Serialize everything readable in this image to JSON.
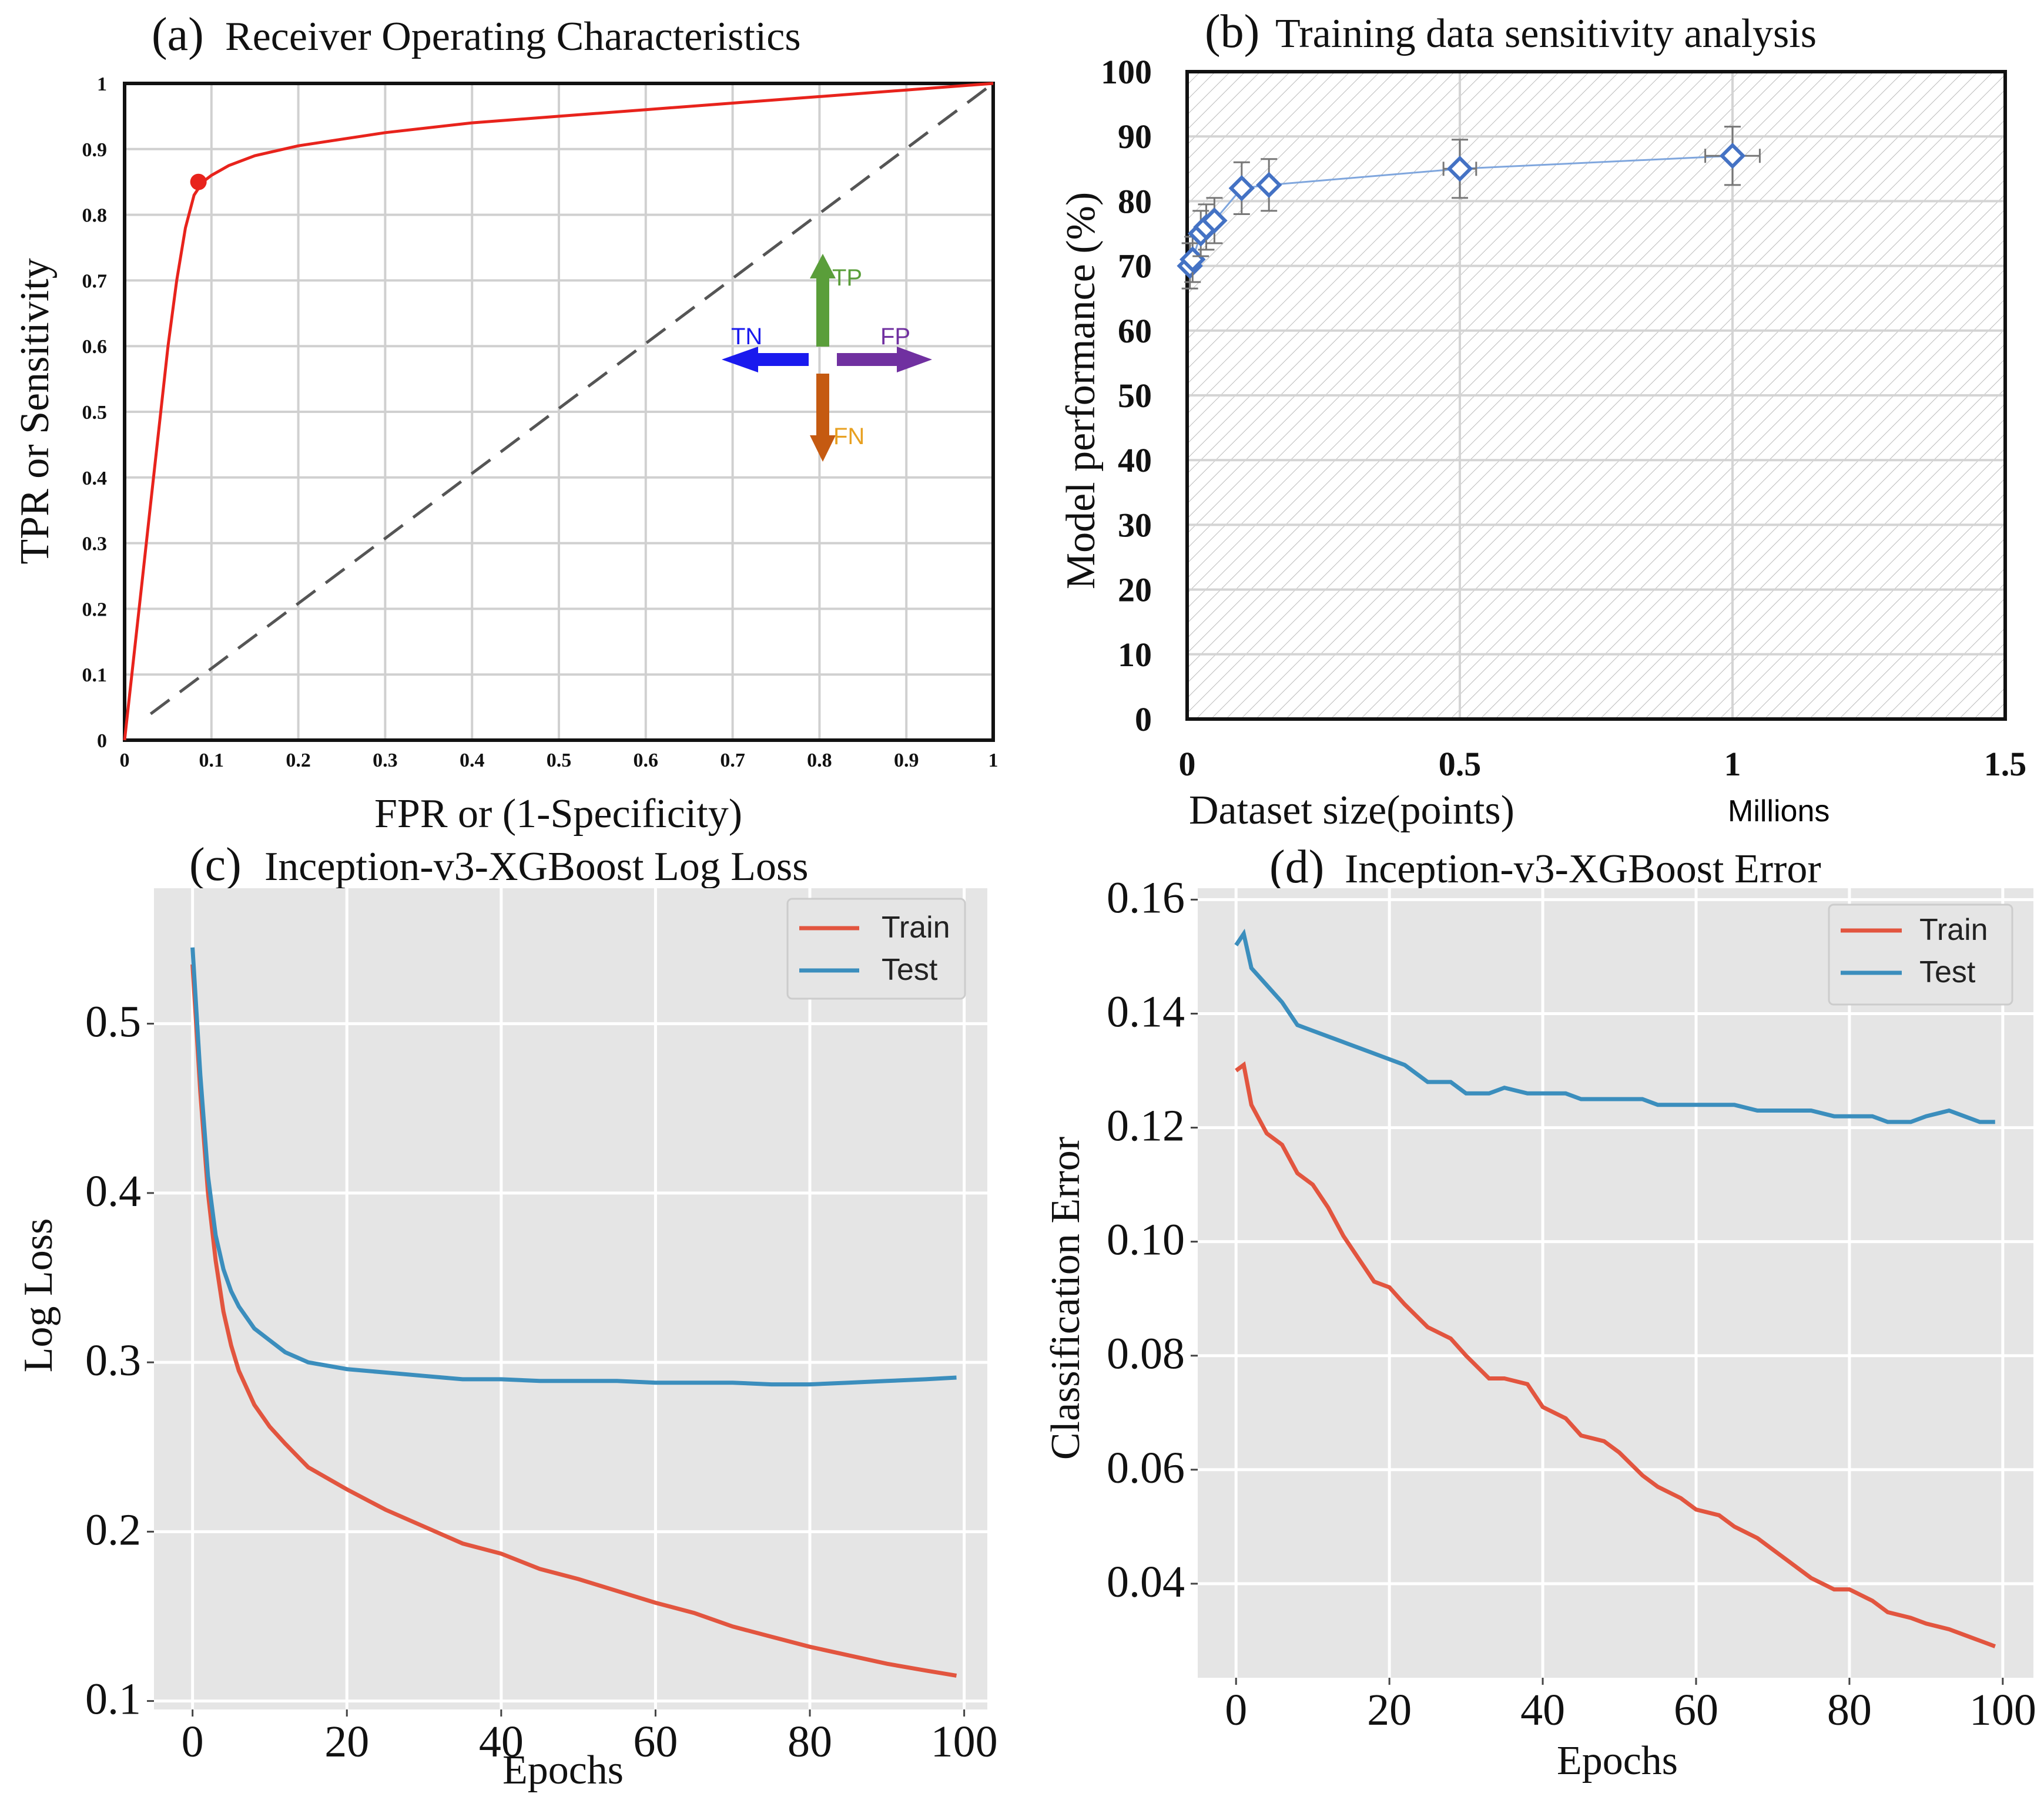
{
  "chart_data": [
    {
      "type": "line",
      "panel_tag": "(a)",
      "title": "Receiver Operating Characteristics",
      "xlabel": "FPR  or  (1-Specificity)",
      "ylabel": "TPR or Sensitivity",
      "xlim": [
        0,
        1
      ],
      "ylim": [
        0,
        1
      ],
      "grid": true,
      "xticks": [
        "0",
        "0.1",
        "0.2",
        "0.3",
        "0.4",
        "0.5",
        "0.6",
        "0.7",
        "0.8",
        "0.9",
        "1"
      ],
      "yticks": [
        "0",
        "0.1",
        "0.2",
        "0.3",
        "0.4",
        "0.5",
        "0.6",
        "0.7",
        "0.8",
        "0.9",
        "1"
      ],
      "roc_curve": {
        "color": "#e8231c",
        "x": [
          0,
          0.01,
          0.02,
          0.03,
          0.04,
          0.05,
          0.06,
          0.07,
          0.08,
          0.09,
          0.1,
          0.12,
          0.15,
          0.2,
          0.3,
          0.4,
          0.5,
          0.6,
          0.7,
          0.8,
          0.9,
          1.0
        ],
        "y": [
          0,
          0.12,
          0.24,
          0.36,
          0.48,
          0.6,
          0.7,
          0.78,
          0.83,
          0.85,
          0.86,
          0.875,
          0.89,
          0.905,
          0.925,
          0.94,
          0.95,
          0.96,
          0.97,
          0.98,
          0.99,
          1.0
        ]
      },
      "operating_point": {
        "x": 0.085,
        "y": 0.85,
        "color": "#e8231c"
      },
      "diagonal": {
        "x": [
          0.03,
          1.0
        ],
        "y": [
          0.04,
          1.0
        ],
        "color": "#555555",
        "style": "dashed"
      },
      "annotations": [
        {
          "label": "TP",
          "direction": "up",
          "color": "#5a9e3a"
        },
        {
          "label": "TN",
          "direction": "left",
          "color": "#1a1aee"
        },
        {
          "label": "FP",
          "direction": "right",
          "color": "#7030a0"
        },
        {
          "label": "FN",
          "direction": "down",
          "color": "#c55a11",
          "label_color": "#e8a020"
        }
      ]
    },
    {
      "type": "scatter",
      "panel_tag": "(b)",
      "title": "Training data sensitivity analysis",
      "xlabel": "Dataset size(points)",
      "xlabel_unit": "Millions",
      "ylabel": "Model performance (%)",
      "xlim": [
        0,
        1.5
      ],
      "ylim": [
        0,
        100
      ],
      "grid": true,
      "xticks": [
        "0",
        "0.5",
        "1",
        "1.5"
      ],
      "yticks": [
        "0",
        "10",
        "20",
        "30",
        "40",
        "50",
        "60",
        "70",
        "80",
        "90",
        "100"
      ],
      "marker_color": "#4472c4",
      "points": [
        {
          "x": 0.005,
          "y": 70,
          "yerr": 3.5,
          "xerr": 0.0
        },
        {
          "x": 0.01,
          "y": 71,
          "yerr": 3.5,
          "xerr": 0.0
        },
        {
          "x": 0.025,
          "y": 75,
          "yerr": 3.5,
          "xerr": 0.0
        },
        {
          "x": 0.035,
          "y": 76,
          "yerr": 3.5,
          "xerr": 0.0
        },
        {
          "x": 0.05,
          "y": 77,
          "yerr": 3.5,
          "xerr": 0.0
        },
        {
          "x": 0.1,
          "y": 82,
          "yerr": 4.0,
          "xerr": 0.0
        },
        {
          "x": 0.15,
          "y": 82.5,
          "yerr": 4.0,
          "xerr": 0.0
        },
        {
          "x": 0.5,
          "y": 85,
          "yerr": 4.5,
          "xerr": 0.03
        },
        {
          "x": 1.0,
          "y": 87,
          "yerr": 4.5,
          "xerr": 0.05
        }
      ]
    },
    {
      "type": "line",
      "panel_tag": "(c)",
      "title": "Inception-v3-XGBoost Log Loss",
      "xlabel": "Epochs",
      "ylabel": "Log Loss",
      "xlim": [
        -5,
        103
      ],
      "ylim": [
        0.095,
        0.58
      ],
      "grid": true,
      "xticks": [
        "0",
        "20",
        "40",
        "60",
        "80",
        "100"
      ],
      "yticks": [
        "0.1",
        "0.2",
        "0.3",
        "0.4",
        "0.5"
      ],
      "legend": "top-right",
      "series": [
        {
          "name": "Train",
          "color": "#e2553f",
          "x": [
            0,
            1,
            2,
            3,
            4,
            5,
            6,
            8,
            10,
            12,
            15,
            20,
            25,
            30,
            35,
            40,
            45,
            50,
            55,
            60,
            65,
            70,
            75,
            80,
            85,
            90,
            95,
            99
          ],
          "values": [
            0.535,
            0.46,
            0.4,
            0.36,
            0.33,
            0.31,
            0.295,
            0.275,
            0.262,
            0.252,
            0.238,
            0.225,
            0.213,
            0.203,
            0.193,
            0.187,
            0.178,
            0.172,
            0.165,
            0.158,
            0.152,
            0.144,
            0.138,
            0.132,
            0.127,
            0.122,
            0.118,
            0.115
          ]
        },
        {
          "name": "Test",
          "color": "#3b8ebd",
          "x": [
            0,
            1,
            2,
            3,
            4,
            5,
            6,
            8,
            10,
            12,
            15,
            20,
            25,
            30,
            35,
            40,
            45,
            50,
            55,
            60,
            65,
            70,
            75,
            80,
            85,
            90,
            95,
            99
          ],
          "values": [
            0.545,
            0.47,
            0.41,
            0.375,
            0.355,
            0.342,
            0.333,
            0.32,
            0.313,
            0.306,
            0.3,
            0.296,
            0.294,
            0.292,
            0.29,
            0.29,
            0.289,
            0.289,
            0.289,
            0.288,
            0.288,
            0.288,
            0.287,
            0.287,
            0.288,
            0.289,
            0.29,
            0.291
          ]
        }
      ]
    },
    {
      "type": "line",
      "panel_tag": "(d)",
      "title": "Inception-v3-XGBoost Error",
      "xlabel": "Epochs",
      "ylabel": "Classification Error",
      "xlim": [
        -5,
        104
      ],
      "ylim": [
        0.0235,
        0.162
      ],
      "grid": true,
      "xticks": [
        "0",
        "20",
        "40",
        "60",
        "80",
        "100"
      ],
      "yticks": [
        "0.04",
        "0.06",
        "0.08",
        "0.10",
        "0.12",
        "0.14",
        "0.16"
      ],
      "legend": "top-right",
      "series": [
        {
          "name": "Train",
          "color": "#e2553f",
          "x": [
            0,
            1,
            2,
            4,
            6,
            8,
            10,
            12,
            14,
            16,
            18,
            20,
            22,
            25,
            28,
            30,
            33,
            35,
            38,
            40,
            43,
            45,
            48,
            50,
            53,
            55,
            58,
            60,
            63,
            65,
            68,
            70,
            73,
            75,
            78,
            80,
            83,
            85,
            88,
            90,
            93,
            95,
            97,
            99
          ],
          "values": [
            0.13,
            0.131,
            0.124,
            0.119,
            0.117,
            0.112,
            0.11,
            0.106,
            0.101,
            0.097,
            0.093,
            0.092,
            0.089,
            0.085,
            0.083,
            0.08,
            0.076,
            0.076,
            0.075,
            0.071,
            0.069,
            0.066,
            0.065,
            0.063,
            0.059,
            0.057,
            0.055,
            0.053,
            0.052,
            0.05,
            0.048,
            0.046,
            0.043,
            0.041,
            0.039,
            0.039,
            0.037,
            0.035,
            0.034,
            0.033,
            0.032,
            0.031,
            0.03,
            0.029
          ]
        },
        {
          "name": "Test",
          "color": "#3b8ebd",
          "x": [
            0,
            1,
            2,
            4,
            6,
            8,
            10,
            12,
            14,
            16,
            18,
            20,
            22,
            25,
            28,
            30,
            33,
            35,
            38,
            40,
            43,
            45,
            48,
            50,
            53,
            55,
            58,
            60,
            63,
            65,
            68,
            70,
            73,
            75,
            78,
            80,
            83,
            85,
            88,
            90,
            93,
            95,
            97,
            99
          ],
          "values": [
            0.152,
            0.154,
            0.148,
            0.145,
            0.142,
            0.138,
            0.137,
            0.136,
            0.135,
            0.134,
            0.133,
            0.132,
            0.131,
            0.128,
            0.128,
            0.126,
            0.126,
            0.127,
            0.126,
            0.126,
            0.126,
            0.125,
            0.125,
            0.125,
            0.125,
            0.124,
            0.124,
            0.124,
            0.124,
            0.124,
            0.123,
            0.123,
            0.123,
            0.123,
            0.122,
            0.122,
            0.122,
            0.121,
            0.121,
            0.122,
            0.123,
            0.122,
            0.121,
            0.121
          ]
        }
      ]
    }
  ]
}
